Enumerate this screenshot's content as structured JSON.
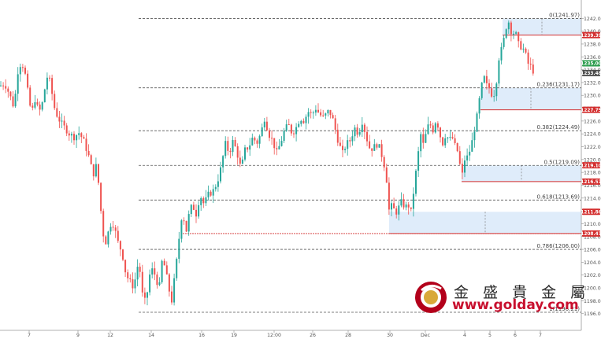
{
  "watermark": {
    "name_cn": "金 盛 貴 金 屬",
    "url": "www.golday.com"
  },
  "colors": {
    "up": "#26a69a",
    "down": "#ef5350",
    "fib_line": "#555555",
    "zone_fill": "#dbeaf9",
    "zone_edge": "#d32f2f",
    "tag_green": "#2e9e4f",
    "tag_red": "#d32f2f"
  },
  "chart_data": {
    "type": "candlestick",
    "title": "",
    "xlabel": "",
    "ylabel": "",
    "ylim": [
      1194,
      1244
    ],
    "y_ticks": [
      "1196.00",
      "1198.00",
      "1200.00",
      "1202.00",
      "1204.00",
      "1206.00",
      "1208.00",
      "1210.00",
      "1212.00",
      "1214.00",
      "1216.00",
      "1218.00",
      "1220.00",
      "1222.00",
      "1224.00",
      "1226.00",
      "1228.00",
      "1230.00",
      "1232.00",
      "1234.00",
      "1236.00",
      "1238.00",
      "1240.00",
      "1242.00"
    ],
    "x_ticks": [
      "7",
      "9",
      "12",
      "14",
      "16",
      "19",
      "12:00",
      "26",
      "28",
      "30",
      "Dec",
      "4",
      "5",
      "6",
      "7"
    ],
    "fib_levels": [
      {
        "label": "0(1241.97)",
        "value": 1241.97
      },
      {
        "label": "0.236(1231.17)",
        "value": 1231.17
      },
      {
        "label": "0.382(1224.49)",
        "value": 1224.49
      },
      {
        "label": "0.5(1219.09)",
        "value": 1219.09
      },
      {
        "label": "0.618(1213.69)",
        "value": 1213.69
      },
      {
        "label": "0.786(1206.00)",
        "value": 1206.0
      },
      {
        "label": "1(1196.21)",
        "value": 1196.21
      }
    ],
    "zones": [
      {
        "top": 1241.97,
        "bottom": 1239.39
      },
      {
        "top": 1231.17,
        "bottom": 1227.75
      },
      {
        "top": 1219.09,
        "bottom": 1216.57
      },
      {
        "top": 1211.86,
        "bottom": 1208.47
      }
    ],
    "price_tags": [
      {
        "label": "1239.39",
        "value": 1239.39,
        "kind": "red"
      },
      {
        "label": "1235.00",
        "value": 1235.0,
        "kind": "green"
      },
      {
        "label": "1233.48",
        "value": 1233.48,
        "kind": "gray"
      },
      {
        "label": "1227.75",
        "value": 1227.75,
        "kind": "red"
      },
      {
        "label": "1219.10",
        "value": 1219.1,
        "kind": "red"
      },
      {
        "label": "1216.57",
        "value": 1216.57,
        "kind": "red"
      },
      {
        "label": "1211.86",
        "value": 1211.86,
        "kind": "red"
      },
      {
        "label": "1208.47",
        "value": 1208.47,
        "kind": "red"
      }
    ],
    "support_line": {
      "value": 1208.47
    },
    "price_path": [
      [
        0,
        1231.5
      ],
      [
        6,
        1231.8
      ],
      [
        12,
        1230.2
      ],
      [
        18,
        1228.0
      ],
      [
        22,
        1233.5
      ],
      [
        27,
        1235.2
      ],
      [
        31,
        1234.0
      ],
      [
        36,
        1230.0
      ],
      [
        40,
        1227.0
      ],
      [
        44,
        1229.5
      ],
      [
        48,
        1228.0
      ],
      [
        52,
        1227.5
      ],
      [
        56,
        1230.5
      ],
      [
        61,
        1233.5
      ],
      [
        65,
        1231.0
      ],
      [
        70,
        1227.5
      ],
      [
        76,
        1226.0
      ],
      [
        82,
        1225.0
      ],
      [
        88,
        1224.0
      ],
      [
        94,
        1223.5
      ],
      [
        100,
        1224.2
      ],
      [
        106,
        1223.0
      ],
      [
        110,
        1221.5
      ],
      [
        114,
        1220.0
      ],
      [
        118,
        1217.5
      ],
      [
        122,
        1219.0
      ],
      [
        126,
        1215.5
      ],
      [
        129,
        1210.5
      ],
      [
        133,
        1206.5
      ],
      [
        137,
        1208.5
      ],
      [
        142,
        1210.5
      ],
      [
        146,
        1209.0
      ],
      [
        150,
        1207.0
      ],
      [
        155,
        1205.5
      ],
      [
        160,
        1202.0
      ],
      [
        165,
        1201.0
      ],
      [
        170,
        1200.0
      ],
      [
        174,
        1203.5
      ],
      [
        178,
        1202.5
      ],
      [
        182,
        1197.5
      ],
      [
        186,
        1198.5
      ],
      [
        190,
        1202.0
      ],
      [
        194,
        1203.0
      ],
      [
        198,
        1201.5
      ],
      [
        202,
        1199.8
      ],
      [
        206,
        1204.5
      ],
      [
        210,
        1203.0
      ],
      [
        214,
        1200.0
      ],
      [
        218,
        1198.0
      ],
      [
        222,
        1202.0
      ],
      [
        226,
        1206.0
      ],
      [
        229,
        1210.0
      ],
      [
        232,
        1212.0
      ],
      [
        236,
        1208.5
      ],
      [
        240,
        1211.5
      ],
      [
        244,
        1213.0
      ],
      [
        249,
        1211.5
      ],
      [
        254,
        1214.5
      ],
      [
        259,
        1213.0
      ],
      [
        264,
        1214.5
      ],
      [
        270,
        1215.0
      ],
      [
        276,
        1216.5
      ],
      [
        281,
        1219.0
      ],
      [
        286,
        1222.5
      ],
      [
        291,
        1221.0
      ],
      [
        296,
        1223.0
      ],
      [
        301,
        1221.0
      ],
      [
        306,
        1218.5
      ],
      [
        311,
        1221.5
      ],
      [
        316,
        1222.0
      ],
      [
        321,
        1223.5
      ],
      [
        326,
        1222.5
      ],
      [
        331,
        1224.0
      ],
      [
        336,
        1226.5
      ],
      [
        341,
        1224.0
      ],
      [
        346,
        1223.0
      ],
      [
        351,
        1221.0
      ],
      [
        356,
        1222.5
      ],
      [
        361,
        1224.5
      ],
      [
        366,
        1225.5
      ],
      [
        371,
        1224.0
      ],
      [
        376,
        1225.0
      ],
      [
        381,
        1226.5
      ],
      [
        386,
        1226.0
      ],
      [
        391,
        1227.5
      ],
      [
        396,
        1227.0
      ],
      [
        401,
        1228.0
      ],
      [
        406,
        1227.0
      ],
      [
        411,
        1226.5
      ],
      [
        416,
        1227.5
      ],
      [
        421,
        1227.0
      ],
      [
        425,
        1225.0
      ],
      [
        430,
        1222.5
      ],
      [
        435,
        1221.0
      ],
      [
        440,
        1222.5
      ],
      [
        445,
        1223.0
      ],
      [
        450,
        1225.0
      ],
      [
        455,
        1224.0
      ],
      [
        460,
        1226.0
      ],
      [
        465,
        1223.5
      ],
      [
        470,
        1221.5
      ],
      [
        475,
        1222.0
      ],
      [
        480,
        1222.5
      ],
      [
        485,
        1220.5
      ],
      [
        490,
        1218.0
      ],
      [
        494,
        1212.0
      ],
      [
        498,
        1213.0
      ],
      [
        502,
        1211.5
      ],
      [
        506,
        1212.5
      ],
      [
        510,
        1213.5
      ],
      [
        514,
        1212.5
      ],
      [
        518,
        1213.0
      ],
      [
        522,
        1211.8
      ],
      [
        526,
        1216.0
      ],
      [
        530,
        1220.0
      ],
      [
        534,
        1224.0
      ],
      [
        538,
        1222.0
      ],
      [
        542,
        1225.0
      ],
      [
        546,
        1225.5
      ],
      [
        550,
        1224.5
      ],
      [
        554,
        1226.5
      ],
      [
        558,
        1224.0
      ],
      [
        562,
        1222.5
      ],
      [
        566,
        1224.0
      ],
      [
        570,
        1223.0
      ],
      [
        574,
        1223.5
      ],
      [
        578,
        1222.0
      ],
      [
        582,
        1221.0
      ],
      [
        586,
        1217.0
      ],
      [
        590,
        1220.0
      ],
      [
        594,
        1220.5
      ],
      [
        598,
        1222.0
      ],
      [
        602,
        1224.5
      ],
      [
        606,
        1227.0
      ],
      [
        610,
        1230.5
      ],
      [
        614,
        1233.0
      ],
      [
        618,
        1231.5
      ],
      [
        622,
        1231.0
      ],
      [
        626,
        1229.5
      ],
      [
        630,
        1232.0
      ],
      [
        634,
        1236.5
      ],
      [
        638,
        1237.5
      ],
      [
        642,
        1240.5
      ],
      [
        646,
        1241.5
      ],
      [
        650,
        1239.5
      ],
      [
        654,
        1240.0
      ],
      [
        658,
        1238.0
      ],
      [
        662,
        1237.5
      ],
      [
        666,
        1237.0
      ],
      [
        670,
        1235.0
      ],
      [
        674,
        1234.5
      ],
      [
        678,
        1233.5
      ]
    ]
  }
}
